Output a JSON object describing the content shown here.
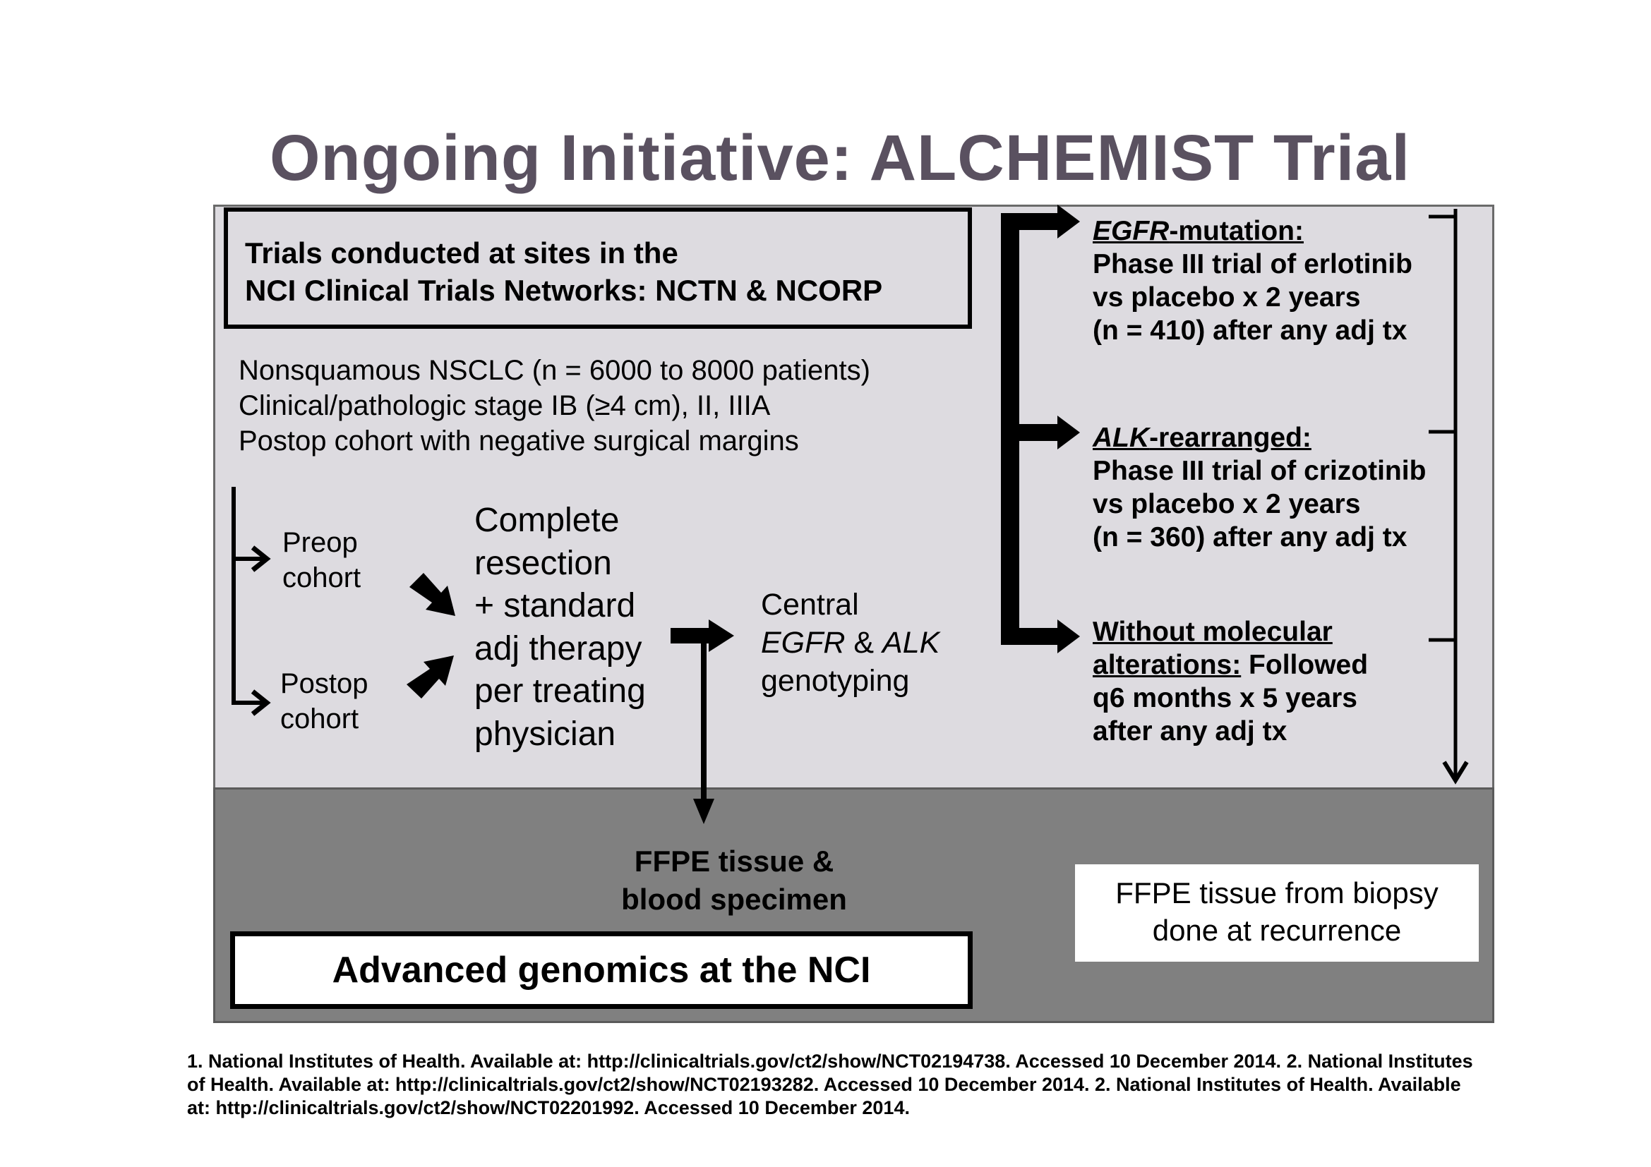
{
  "title": "Ongoing Initiative: ALCHEMIST Trial",
  "sites_box": {
    "line1": "Trials conducted at sites in the",
    "line2": "NCI Clinical Trials Networks: NCTN & NCORP"
  },
  "criteria": [
    "Nonsquamous NSCLC (n = 6000 to 8000 patients)",
    "Clinical/pathologic stage IB (≥4 cm), II, IIIA",
    "Postop cohort with negative surgical margins"
  ],
  "cohorts": {
    "preop": [
      "Preop",
      "cohort"
    ],
    "postop": [
      "Postop",
      "cohort"
    ]
  },
  "resection": [
    "Complete",
    "resection",
    "+ standard",
    "adj therapy",
    "per treating",
    "physician"
  ],
  "genotyping": {
    "line1": "Central",
    "egfr": "EGFR",
    "amp": " & ",
    "alk": "ALK",
    "line3": "genotyping"
  },
  "branches": {
    "egfr": {
      "gene": "EGFR",
      "heading_rest": "-mutation:",
      "lines": [
        "Phase III trial of erlotinib",
        "vs placebo x 2 years",
        "(n = 410) after any adj tx"
      ]
    },
    "alk": {
      "gene": "ALK",
      "heading_rest": "-rearranged:",
      "lines": [
        "Phase III trial of crizotinib",
        "vs placebo x 2 years",
        "(n = 360) after any adj tx"
      ]
    },
    "no_molecular": {
      "heading_line1": "Without molecular",
      "heading_line2": "alterations:",
      "heading_line2_rest": " Followed",
      "lines": [
        "q6 months x 5 years",
        "after any adj tx"
      ]
    }
  },
  "ffpe_specimen": [
    "FFPE tissue &",
    "blood specimen"
  ],
  "genomics": "Advanced genomics at the NCI",
  "biopsy": [
    "FFPE tissue from biopsy",
    "done at recurrence"
  ],
  "references": [
    "1. National Institutes of Health.  Available at: http://clinicaltrials.gov/ct2/show/NCT02194738. Accessed 10 December 2014. 2. National Institutes",
    "of Health.  Available at: http://clinicaltrials.gov/ct2/show/NCT02193282. Accessed 10 December 2014. 2. National Institutes of Health.  Available",
    "at: http://clinicaltrials.gov/ct2/show/NCT02201992. Accessed 10 December 2014."
  ],
  "colors": {
    "title": "#5a5160",
    "upper_panel": "#dddbe0",
    "lower_panel": "#808080"
  }
}
